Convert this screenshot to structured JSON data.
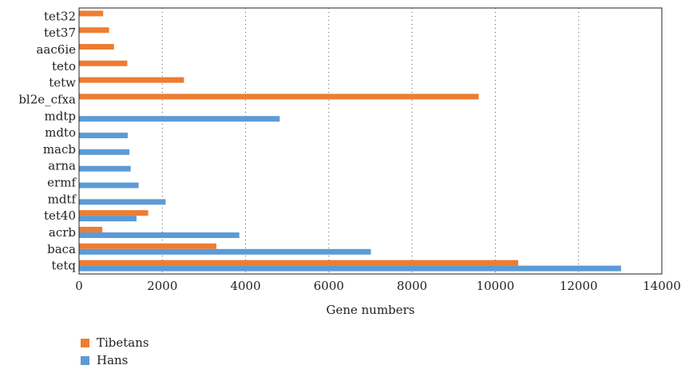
{
  "chart_data": {
    "type": "bar",
    "orientation": "horizontal",
    "categories": [
      "tet32",
      "tet37",
      "aac6ie",
      "teto",
      "tetw",
      "bl2e_cfxa",
      "mdtp",
      "mdto",
      "macb",
      "arna",
      "ermf",
      "mdtf",
      "tet40",
      "acrb",
      "baca",
      "tetq"
    ],
    "series": [
      {
        "name": "Tibetans",
        "color": "#ED7D31",
        "values": [
          580,
          720,
          840,
          1160,
          2520,
          9600,
          null,
          null,
          null,
          null,
          null,
          null,
          1660,
          560,
          3300,
          10550
        ]
      },
      {
        "name": "Hans",
        "color": "#5B9BD5",
        "values": [
          null,
          null,
          null,
          null,
          null,
          null,
          4820,
          1170,
          1210,
          1240,
          1430,
          2080,
          1380,
          3850,
          7010,
          13020
        ]
      }
    ],
    "xlabel": "Gene numbers",
    "ylabel": "",
    "xlim": [
      0,
      14000
    ],
    "xticks": [
      "0",
      "2000",
      "4000",
      "6000",
      "8000",
      "10000",
      "12000",
      "14000"
    ],
    "grid": "vertical dotted",
    "legend": "bottom-left"
  }
}
